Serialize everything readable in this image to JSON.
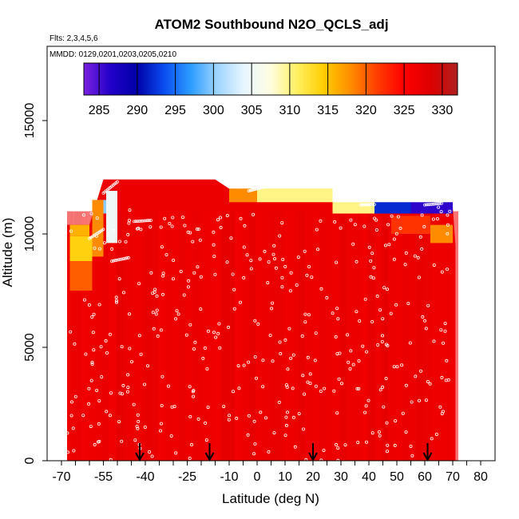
{
  "chart_data": {
    "type": "heatmap",
    "title": "ATOM2 Southbound N2O_QCLS_adj",
    "flights_label": "Flts: 2,3,4,5,6",
    "dates_label": "MMDD: 0129,0201,0203,0205,0210",
    "xlabel": "Latitude (deg N)",
    "ylabel": "Altitude (m)",
    "xlim": [
      -70,
      80
    ],
    "ylim": [
      0,
      17500
    ],
    "x_major_ticks": [
      -70,
      -55,
      -40,
      -25,
      -10,
      0,
      10,
      20,
      30,
      40,
      50,
      60,
      70,
      80
    ],
    "x_minor_ticks": [
      -65,
      -60,
      -50,
      -45,
      -35,
      -30,
      -20,
      -15,
      -5,
      5,
      15,
      25,
      35,
      45,
      55,
      65,
      75
    ],
    "y_ticks": [
      0,
      5000,
      10000,
      15000
    ],
    "colorbar": {
      "ticks": [
        285,
        290,
        295,
        300,
        305,
        310,
        315,
        320,
        325,
        330
      ],
      "range": [
        283,
        332
      ],
      "stops": [
        "#7b22e0",
        "#2200c8",
        "#0000a8",
        "#0a4cf0",
        "#2c9cff",
        "#9ed4ff",
        "#e8f6ff",
        "#fffde0",
        "#fff060",
        "#ffcc00",
        "#ff8c00",
        "#ff3c00",
        "#ff0000",
        "#dd0000",
        "#b02020"
      ]
    },
    "arrow_latitudes": [
      -42,
      -17,
      20,
      61
    ],
    "coverage": {
      "lat_range": [
        -68,
        71
      ],
      "alt_top_by_lat": [
        [
          -68,
          10400
        ],
        [
          -60,
          10400
        ],
        [
          -55,
          12400
        ],
        [
          -15,
          12400
        ],
        [
          -10,
          12000
        ],
        [
          27,
          11400
        ],
        [
          42,
          11200
        ],
        [
          70,
          11200
        ],
        [
          71,
          9500
        ]
      ],
      "background_value": 327
    },
    "features": [
      {
        "lat": [
          -57,
          -53
        ],
        "alt": [
          10900,
          11500
        ],
        "value": 300
      },
      {
        "lat": [
          -67,
          -60
        ],
        "alt": [
          9900,
          10400
        ],
        "value": 316
      },
      {
        "lat": [
          -67,
          -59
        ],
        "alt": [
          8800,
          9900
        ],
        "value": 314
      },
      {
        "lat": [
          -67,
          -59
        ],
        "alt": [
          7500,
          8800
        ],
        "value": 320
      },
      {
        "lat": [
          -59,
          -55
        ],
        "alt": [
          9000,
          11500
        ],
        "value": 318
      },
      {
        "lat": [
          -54,
          -50
        ],
        "alt": [
          9600,
          11900
        ],
        "value": 305
      },
      {
        "lat": [
          -10,
          0
        ],
        "alt": [
          11400,
          12000
        ],
        "value": 318
      },
      {
        "lat": [
          0,
          27
        ],
        "alt": [
          11400,
          12000
        ],
        "value": 310
      },
      {
        "lat": [
          27,
          42
        ],
        "alt": [
          10900,
          11400
        ],
        "value": 310
      },
      {
        "lat": [
          42,
          55
        ],
        "alt": [
          10900,
          11400
        ],
        "value": 292
      },
      {
        "lat": [
          55,
          70
        ],
        "alt": [
          10900,
          11400
        ],
        "value": 286
      },
      {
        "lat": [
          48,
          62
        ],
        "alt": [
          10000,
          10800
        ],
        "value": 322
      },
      {
        "lat": [
          62,
          70
        ],
        "alt": [
          9600,
          10400
        ],
        "value": 318
      }
    ],
    "sample_points_shown": true
  }
}
